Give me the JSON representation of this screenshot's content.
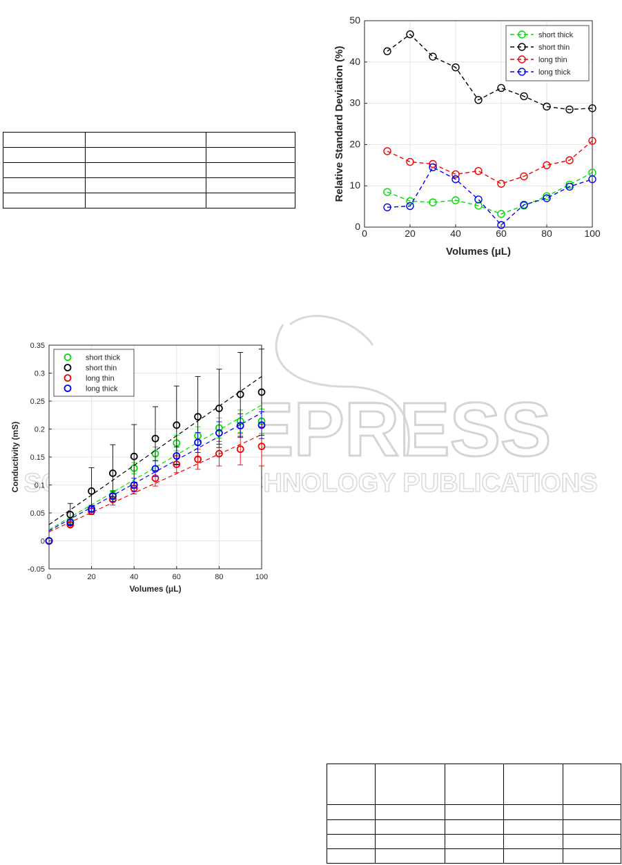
{
  "charts": [
    {
      "type": "line",
      "xlabel": "Volumes (μL)",
      "ylabel": "Relative Standard Deviation (%)",
      "xlim": [
        0,
        100
      ],
      "ylim": [
        0,
        50
      ],
      "xticks": [
        "0",
        "20",
        "40",
        "60",
        "80",
        "100"
      ],
      "yticks": [
        "0",
        "10",
        "20",
        "30",
        "40",
        "50"
      ],
      "grid": true,
      "legend_position": "top-right",
      "x": [
        10,
        20,
        30,
        40,
        50,
        60,
        70,
        80,
        90,
        100
      ],
      "series": [
        {
          "name": "short thick",
          "color": "#00dd00",
          "values": [
            8.5,
            6.3,
            6.0,
            6.5,
            5.2,
            3.2,
            5.2,
            7.5,
            10.3,
            13.2
          ]
        },
        {
          "name": "short thin",
          "color": "#000000",
          "values": [
            42.6,
            46.7,
            41.3,
            38.7,
            30.8,
            33.7,
            31.7,
            29.2,
            28.5,
            28.8
          ]
        },
        {
          "name": "long thin",
          "color": "#ee0000",
          "values": [
            18.4,
            15.8,
            15.3,
            12.8,
            13.6,
            10.5,
            12.3,
            15.0,
            16.2,
            20.9
          ]
        },
        {
          "name": "long thick",
          "color": "#0000ee",
          "values": [
            4.8,
            5.1,
            14.5,
            11.6,
            6.7,
            0.5,
            5.4,
            7.0,
            9.8,
            11.6
          ]
        }
      ]
    },
    {
      "type": "scatter",
      "xlabel": "Volumes (μL)",
      "ylabel": "Conductivity (mS)",
      "xlim": [
        0,
        100
      ],
      "ylim": [
        -0.05,
        0.35
      ],
      "xticks": [
        "0",
        "20",
        "40",
        "60",
        "80",
        "100"
      ],
      "yticks": [
        "-0.05",
        "0",
        "0.05",
        "0.1",
        "0.15",
        "0.2",
        "0.25",
        "0.3",
        "0.35"
      ],
      "grid": true,
      "legend_position": "top-left",
      "x": [
        0,
        10,
        20,
        30,
        40,
        50,
        60,
        70,
        80,
        90,
        100
      ],
      "series": [
        {
          "name": "short thick",
          "color": "#00dd00",
          "values": [
            0,
            0.035,
            0.058,
            0.082,
            0.13,
            0.156,
            0.175,
            0.188,
            0.202,
            0.214,
            0.214
          ],
          "errors": [
            0,
            0.005,
            0.006,
            0.008,
            0.01,
            0.012,
            0.014,
            0.016,
            0.018,
            0.02,
            0.022
          ],
          "fit": [
            0.02,
            0.243
          ]
        },
        {
          "name": "short thin",
          "color": "#000000",
          "values": [
            0,
            0.047,
            0.089,
            0.121,
            0.151,
            0.183,
            0.207,
            0.222,
            0.237,
            0.262,
            0.266
          ],
          "errors": [
            0,
            0.02,
            0.042,
            0.051,
            0.057,
            0.057,
            0.07,
            0.072,
            0.07,
            0.075,
            0.077
          ],
          "fit": [
            0.029,
            0.294
          ]
        },
        {
          "name": "long thin",
          "color": "#ee0000",
          "values": [
            0,
            0.029,
            0.053,
            0.074,
            0.094,
            0.112,
            0.137,
            0.146,
            0.156,
            0.164,
            0.169
          ],
          "errors": [
            0,
            0.004,
            0.006,
            0.01,
            0.01,
            0.014,
            0.015,
            0.018,
            0.022,
            0.028,
            0.035
          ],
          "fit": [
            0.016,
            0.19
          ]
        },
        {
          "name": "long thick",
          "color": "#0000ee",
          "values": [
            0,
            0.033,
            0.057,
            0.08,
            0.1,
            0.129,
            0.152,
            0.176,
            0.193,
            0.206,
            0.207
          ],
          "errors": [
            0,
            0.004,
            0.006,
            0.009,
            0.012,
            0.014,
            0.016,
            0.018,
            0.02,
            0.021,
            0.024
          ],
          "fit": [
            0.018,
            0.229
          ]
        }
      ]
    }
  ],
  "tables": [
    {
      "rows": 5,
      "cols": 3
    },
    {
      "rows": 5,
      "cols": 5
    }
  ],
  "watermark": {
    "line1": "SCITEPRESS",
    "line2": "SCIENCE AND TECHNOLOGY PUBLICATIONS",
    "color": "#c8c8c8"
  }
}
